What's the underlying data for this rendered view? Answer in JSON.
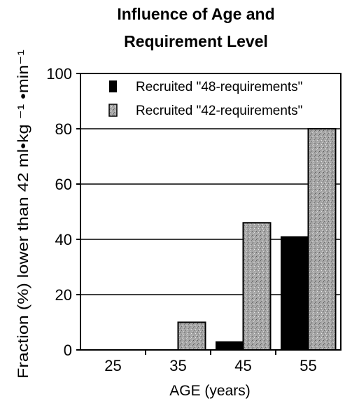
{
  "chart_data": {
    "type": "bar",
    "title_lines": [
      "Influence of Age and",
      "Requirement Level"
    ],
    "xlabel": "AGE (years)",
    "ylabel": "Fraction (%) lower than 42 ml•kg ⁻¹ •min⁻¹",
    "categories": [
      "25",
      "35",
      "45",
      "55"
    ],
    "yticks": [
      "0",
      "20",
      "40",
      "60",
      "80",
      "100"
    ],
    "ylim": [
      0,
      100
    ],
    "grid": "horizontal",
    "legend_position": "top",
    "series": [
      {
        "name": "Recruited \"48-requirements\"",
        "values": [
          0,
          0,
          3,
          41
        ],
        "color": "#000000",
        "pattern": "solid"
      },
      {
        "name": "Recruited \"42-requirements\"",
        "values": [
          0,
          10,
          46,
          80
        ],
        "color": "#9a9a9a",
        "pattern": "stipple"
      }
    ]
  }
}
